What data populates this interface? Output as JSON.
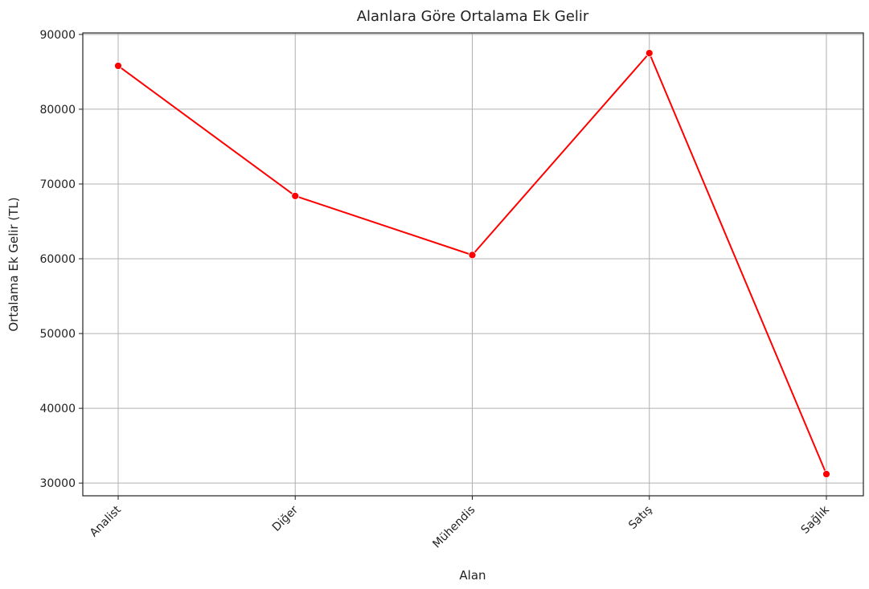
{
  "chart_data": {
    "type": "line",
    "title": "Alanlara Göre Ortalama Ek Gelir",
    "xlabel": "Alan",
    "ylabel": "Ortalama Ek Gelir (TL)",
    "categories": [
      "Analist",
      "Diğer",
      "Mühendis",
      "Satış",
      "Sağlık"
    ],
    "series": [
      {
        "values": [
          85800,
          68400,
          60500,
          87500,
          31200
        ],
        "color": "#ff0000"
      }
    ],
    "ylim": [
      28300,
      90200
    ],
    "yticks": [
      30000,
      40000,
      50000,
      60000,
      70000,
      80000,
      90000
    ],
    "grid": true,
    "marker": "circle"
  }
}
